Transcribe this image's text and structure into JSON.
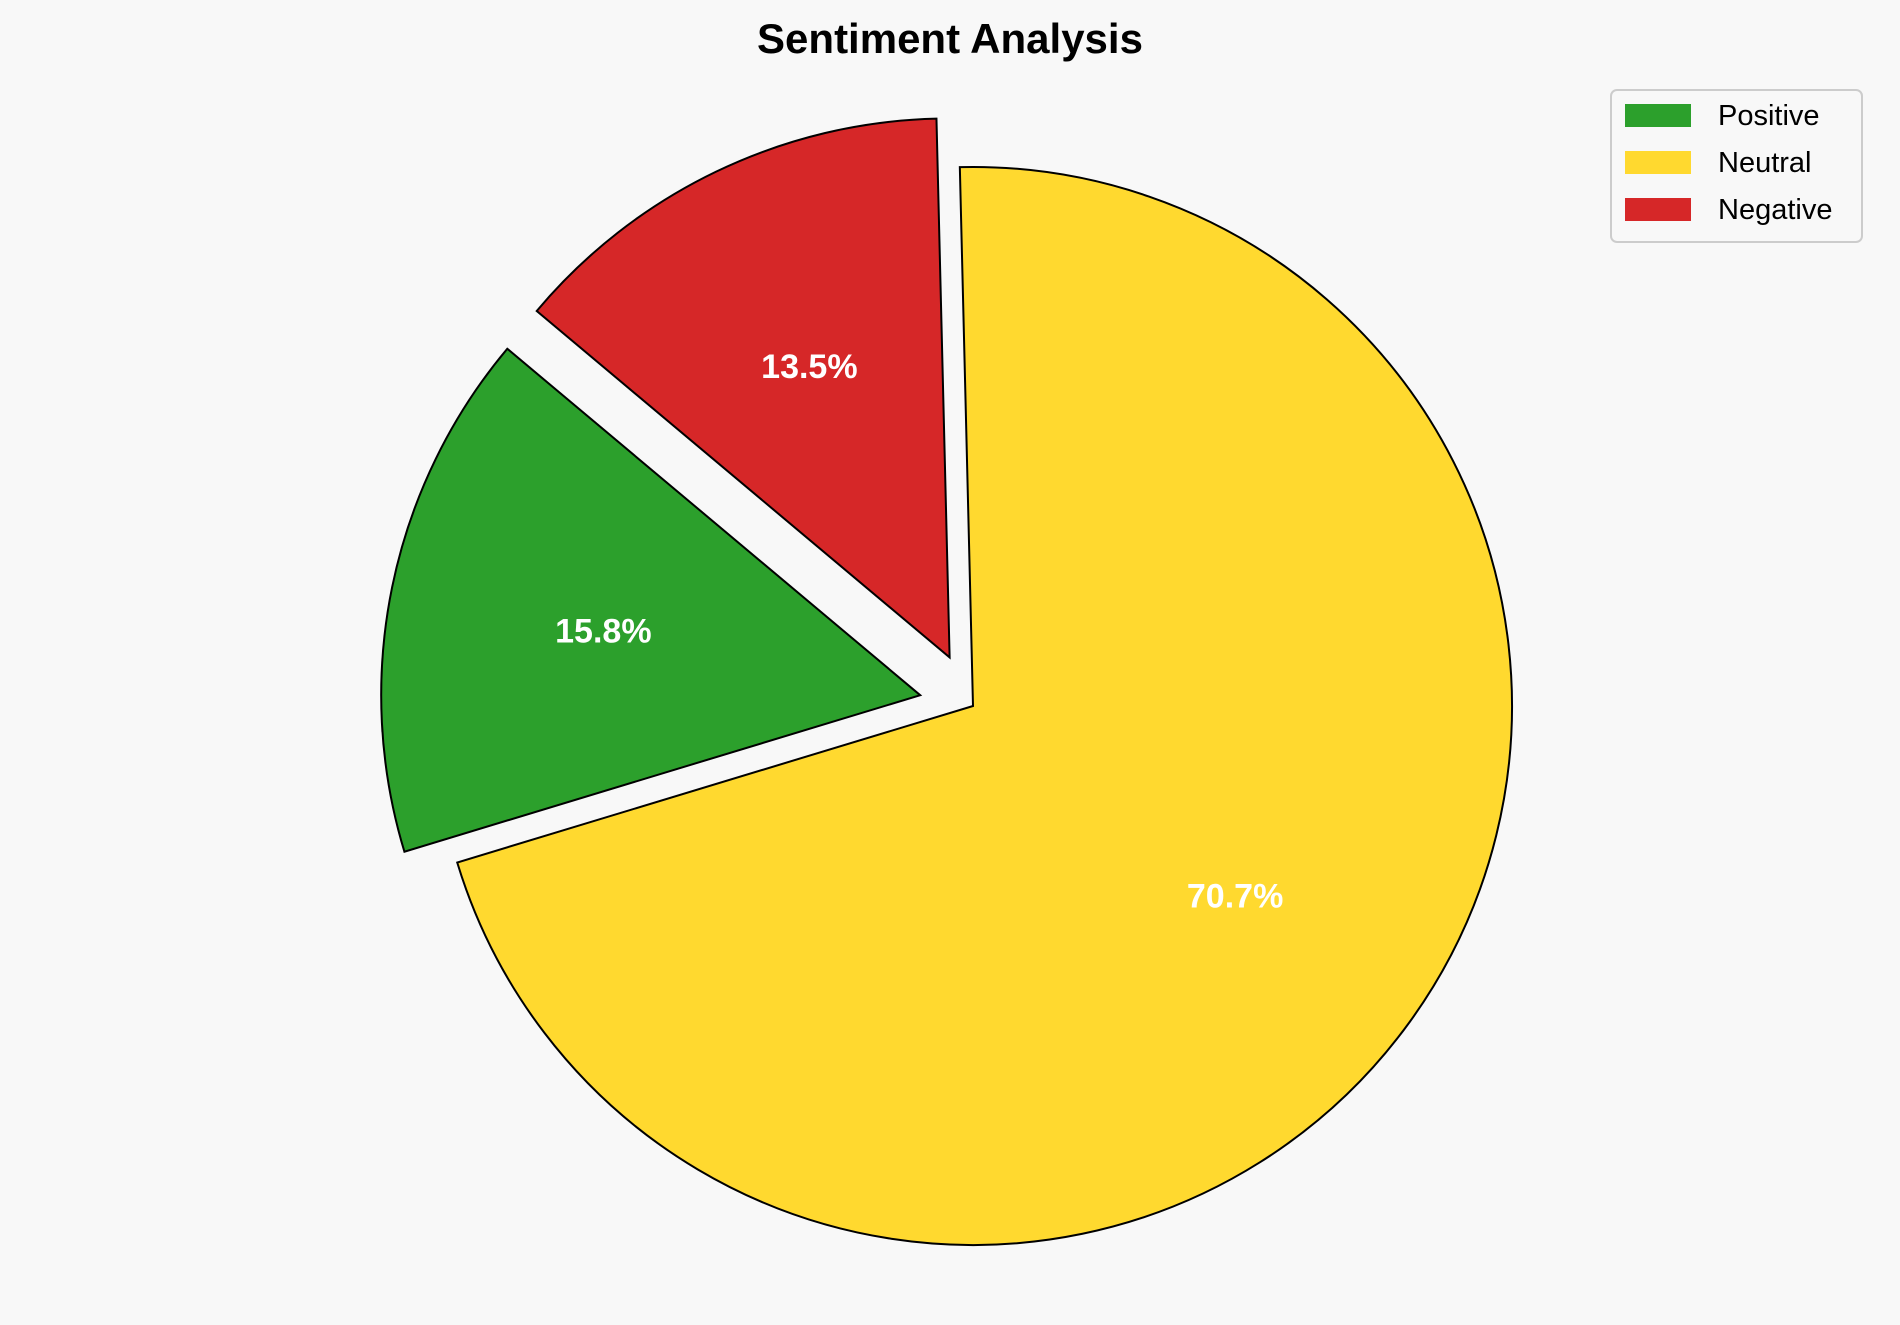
{
  "chart_data": {
    "type": "pie",
    "title": "Sentiment Analysis",
    "categories": [
      "Positive",
      "Neutral",
      "Negative"
    ],
    "values": [
      15.8,
      70.7,
      13.5
    ],
    "labels": [
      "15.8%",
      "70.7%",
      "13.5%"
    ],
    "colors": [
      "#2ca02c",
      "#ffd92f",
      "#d62728"
    ],
    "explode": [
      0.1,
      0,
      0.1
    ],
    "start_angle": 140,
    "legend_position": "top-right",
    "edge_color": "#000000",
    "label_color": "#ffffff"
  }
}
